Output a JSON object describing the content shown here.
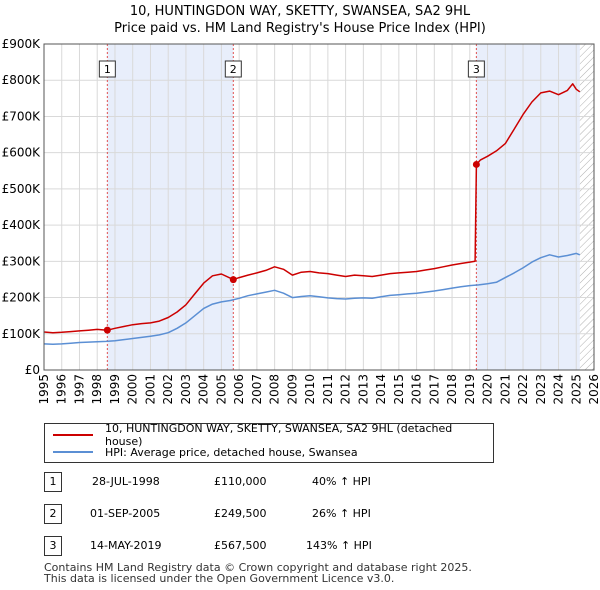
{
  "title_line1": "10, HUNTINGDON WAY, SKETTY, SWANSEA, SA2 9HL",
  "title_line2": "Price paid vs. HM Land Registry's House Price Index (HPI)",
  "legend": {
    "property_label": "10, HUNTINGDON WAY, SKETTY, SWANSEA, SA2 9HL (detached house)",
    "hpi_label": "HPI: Average price, detached house, Swansea"
  },
  "colors": {
    "property": "#cc0000",
    "hpi": "#5b8fd4",
    "shade": "#e8eefb",
    "grid": "#d9d9d9"
  },
  "sales": [
    {
      "num": "1",
      "date": "28-JUL-1998",
      "price": "£110,000",
      "hpi_diff": "40% ↑ HPI"
    },
    {
      "num": "2",
      "date": "01-SEP-2005",
      "price": "£249,500",
      "hpi_diff": "26% ↑ HPI"
    },
    {
      "num": "3",
      "date": "14-MAY-2019",
      "price": "£567,500",
      "hpi_diff": "143% ↑ HPI"
    }
  ],
  "footer_line1": "Contains HM Land Registry data © Crown copyright and database right 2025.",
  "footer_line2": "This data is licensed under the Open Government Licence v3.0.",
  "chart_data": {
    "type": "line",
    "title": "Price paid vs. HM Land Registry's House Price Index (HPI)",
    "xlim": [
      1995,
      2026
    ],
    "ylim": [
      0,
      900000
    ],
    "x_ticks": [
      1995,
      1996,
      1997,
      1998,
      1999,
      2000,
      2001,
      2002,
      2003,
      2004,
      2005,
      2006,
      2007,
      2008,
      2009,
      2010,
      2011,
      2012,
      2013,
      2014,
      2015,
      2016,
      2017,
      2018,
      2019,
      2020,
      2021,
      2022,
      2023,
      2024,
      2025,
      2026
    ],
    "y_ticks": [
      {
        "value": 0,
        "label": "£0"
      },
      {
        "value": 100000,
        "label": "£100K"
      },
      {
        "value": 200000,
        "label": "£200K"
      },
      {
        "value": 300000,
        "label": "£300K"
      },
      {
        "value": 400000,
        "label": "£400K"
      },
      {
        "value": 500000,
        "label": "£500K"
      },
      {
        "value": 600000,
        "label": "£600K"
      },
      {
        "value": 700000,
        "label": "£700K"
      },
      {
        "value": 800000,
        "label": "£800K"
      },
      {
        "value": 900000,
        "label": "£900K"
      }
    ],
    "shaded_spans": [
      [
        1998.57,
        2005.67
      ],
      [
        2019.37,
        2025.2
      ]
    ],
    "hatched_span": [
      2025.2,
      2026
    ],
    "markers": [
      {
        "label": "1",
        "x": 1998.57
      },
      {
        "label": "2",
        "x": 2005.67
      },
      {
        "label": "3",
        "x": 2019.37
      }
    ],
    "sale_points": [
      {
        "x": 1998.57,
        "y": 110000
      },
      {
        "x": 2005.67,
        "y": 249500
      },
      {
        "x": 2019.37,
        "y": 567500
      }
    ],
    "series": [
      {
        "name": "10, HUNTINGDON WAY, SKETTY, SWANSEA, SA2 9HL (detached house)",
        "color": "#cc0000",
        "x": [
          1995.0,
          1995.5,
          1996.0,
          1996.5,
          1997.0,
          1997.5,
          1998.0,
          1998.57,
          1999.0,
          1999.5,
          2000.0,
          2000.5,
          2001.0,
          2001.5,
          2002.0,
          2002.5,
          2003.0,
          2003.5,
          2004.0,
          2004.5,
          2005.0,
          2005.67,
          2006.0,
          2006.5,
          2007.0,
          2007.5,
          2008.0,
          2008.5,
          2009.0,
          2009.5,
          2010.0,
          2010.5,
          2011.0,
          2011.5,
          2012.0,
          2012.5,
          2013.0,
          2013.5,
          2014.0,
          2014.5,
          2015.0,
          2015.5,
          2016.0,
          2016.5,
          2017.0,
          2017.5,
          2018.0,
          2018.5,
          2019.0,
          2019.3,
          2019.37,
          2019.6,
          2020.0,
          2020.5,
          2021.0,
          2021.5,
          2022.0,
          2022.5,
          2023.0,
          2023.5,
          2024.0,
          2024.5,
          2024.8,
          2025.0,
          2025.2
        ],
        "y": [
          105000,
          103000,
          104000,
          106000,
          108000,
          110000,
          112000,
          110000,
          115000,
          120000,
          125000,
          128000,
          130000,
          135000,
          145000,
          160000,
          180000,
          210000,
          240000,
          260000,
          265000,
          249500,
          255000,
          262000,
          268000,
          275000,
          285000,
          278000,
          262000,
          270000,
          272000,
          268000,
          266000,
          262000,
          258000,
          262000,
          260000,
          258000,
          262000,
          266000,
          268000,
          270000,
          272000,
          276000,
          280000,
          285000,
          290000,
          294000,
          298000,
          300000,
          567500,
          580000,
          590000,
          605000,
          625000,
          665000,
          705000,
          740000,
          765000,
          770000,
          760000,
          772000,
          790000,
          775000,
          768000
        ]
      },
      {
        "name": "HPI: Average price, detached house, Swansea",
        "color": "#5b8fd4",
        "x": [
          1995.0,
          1995.5,
          1996.0,
          1996.5,
          1997.0,
          1997.5,
          1998.0,
          1998.5,
          1999.0,
          1999.5,
          2000.0,
          2000.5,
          2001.0,
          2001.5,
          2002.0,
          2002.5,
          2003.0,
          2003.5,
          2004.0,
          2004.5,
          2005.0,
          2005.5,
          2006.0,
          2006.5,
          2007.0,
          2007.5,
          2008.0,
          2008.5,
          2009.0,
          2009.5,
          2010.0,
          2010.5,
          2011.0,
          2011.5,
          2012.0,
          2012.5,
          2013.0,
          2013.5,
          2014.0,
          2014.5,
          2015.0,
          2015.5,
          2016.0,
          2016.5,
          2017.0,
          2017.5,
          2018.0,
          2018.5,
          2019.0,
          2019.5,
          2020.0,
          2020.5,
          2021.0,
          2021.5,
          2022.0,
          2022.5,
          2023.0,
          2023.5,
          2024.0,
          2024.5,
          2025.0,
          2025.2
        ],
        "y": [
          72000,
          71000,
          72000,
          74000,
          76000,
          77000,
          78000,
          79000,
          81000,
          84000,
          87000,
          90000,
          93000,
          97000,
          103000,
          115000,
          130000,
          150000,
          170000,
          182000,
          188000,
          192000,
          198000,
          205000,
          210000,
          215000,
          220000,
          212000,
          200000,
          203000,
          205000,
          202000,
          199000,
          197000,
          196000,
          198000,
          199000,
          198000,
          202000,
          206000,
          208000,
          210000,
          212000,
          215000,
          218000,
          222000,
          226000,
          230000,
          233000,
          235000,
          238000,
          242000,
          255000,
          268000,
          282000,
          298000,
          310000,
          318000,
          312000,
          316000,
          322000,
          318000
        ]
      }
    ]
  }
}
